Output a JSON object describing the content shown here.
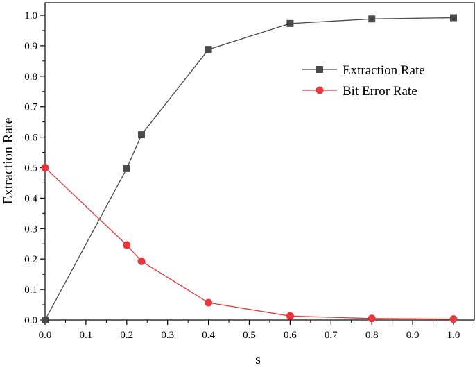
{
  "chart_data": {
    "type": "line",
    "title": "",
    "xlabel": "s",
    "ylabel": "Extraction Rate",
    "xlim": [
      0.0,
      1.0
    ],
    "ylim": [
      0.0,
      1.0
    ],
    "x_ticks": [
      "0.0",
      "0.1",
      "0.2",
      "0.3",
      "0.4",
      "0.5",
      "0.6",
      "0.7",
      "0.8",
      "0.9",
      "1.0"
    ],
    "y_ticks": [
      "0.0",
      "0.1",
      "0.2",
      "0.3",
      "0.4",
      "0.5",
      "0.6",
      "0.7",
      "0.8",
      "0.9",
      "1.0"
    ],
    "grid": false,
    "legend_position": "top-right",
    "series": [
      {
        "name": "Extraction Rate",
        "marker": "square",
        "color": "#4a4a4a",
        "x": [
          0.0,
          0.2,
          0.236,
          0.4,
          0.6,
          0.8,
          1.0
        ],
        "y": [
          0.0,
          0.497,
          0.608,
          0.888,
          0.973,
          0.988,
          0.992
        ]
      },
      {
        "name": "Bit Error Rate",
        "marker": "circle",
        "color": "#e8383d",
        "x": [
          0.0,
          0.2,
          0.236,
          0.4,
          0.6,
          0.8,
          1.0
        ],
        "y": [
          0.5,
          0.246,
          0.193,
          0.057,
          0.013,
          0.005,
          0.003
        ]
      }
    ]
  }
}
